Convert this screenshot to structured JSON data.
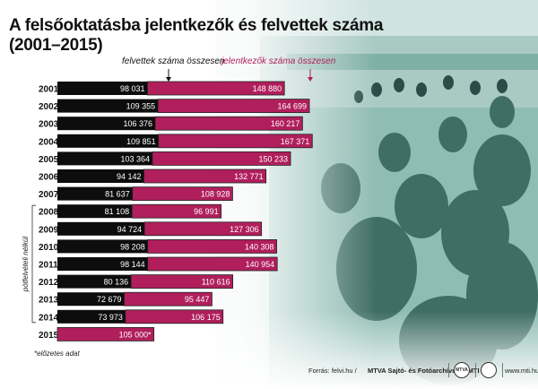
{
  "title_line1": "A felsőoktatásba jelentkezők és felvettek száma",
  "title_line2": "(2001–2015)",
  "note": "*előzetes adat",
  "footer": {
    "source": "Forrás: felvi.hu /",
    "agency": "MTVA Sajtó- és Fotóarchívum / MTI",
    "logo_text": "MTVA",
    "website": "www.mti.hu"
  },
  "colors": {
    "admitted": "#0d0d0d",
    "applicants": "#b01f5c",
    "photo_tint": "#6aa39a"
  },
  "chart_data": {
    "type": "bar",
    "orientation": "horizontal",
    "stacked": true,
    "categories": [
      "2001",
      "2002",
      "2003",
      "2004",
      "2005",
      "2006",
      "2007",
      "2008",
      "2009",
      "2010",
      "2011",
      "2012",
      "2013",
      "2014",
      "2015"
    ],
    "series": [
      {
        "name": "felvettek száma összesen",
        "values": [
          98031,
          109355,
          106376,
          109851,
          103364,
          94142,
          81637,
          81108,
          94724,
          98208,
          98144,
          80136,
          72679,
          73973,
          null
        ]
      },
      {
        "name": "jelentkezők száma összesen",
        "values": [
          148880,
          164699,
          160217,
          167371,
          150233,
          132771,
          108928,
          96991,
          127306,
          140308,
          140954,
          110616,
          95447,
          106175,
          105000
        ]
      }
    ],
    "value_labels": {
      "admitted": [
        "98 031",
        "109 355",
        "106 376",
        "109 851",
        "103 364",
        "94 142",
        "81 637",
        "81 108",
        "94 724",
        "98 208",
        "98 144",
        "80 136",
        "72 679",
        "73 973",
        ""
      ],
      "applicants": [
        "148 880",
        "164 699",
        "160 217",
        "167 371",
        "150 233",
        "132 771",
        "108 928",
        "96 991",
        "127 306",
        "140 308",
        "140 954",
        "110 616",
        "95 447",
        "106 175",
        "105 000*"
      ]
    },
    "bracket_years": [
      "2008",
      "2009",
      "2010",
      "2011",
      "2012",
      "2013",
      "2014"
    ],
    "bracket_label": "pótfelvételi nélkül",
    "xlim": [
      0,
      275000
    ]
  }
}
